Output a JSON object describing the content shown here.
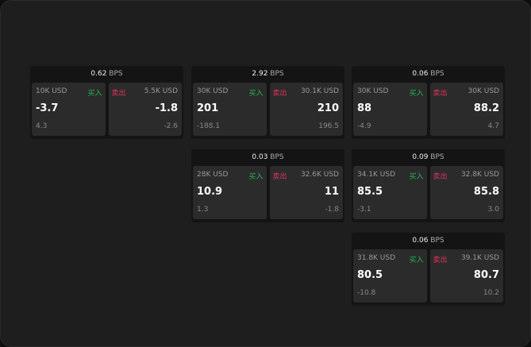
{
  "bps_unit": "BPS",
  "buy_label": "买入",
  "sell_label": "卖出",
  "colors": {
    "buy": "#27b35a",
    "sell": "#e0335f"
  },
  "cards": [
    {
      "bps": "0.62",
      "bid": {
        "qty": "10K USD",
        "price": "-3.7",
        "change": "4.3"
      },
      "ask": {
        "qty": "5.5K USD",
        "price": "-1.8",
        "change": "-2.6"
      }
    },
    {
      "bps": "2.92",
      "bid": {
        "qty": "30K USD",
        "price": "201",
        "change": "-188.1"
      },
      "ask": {
        "qty": "30.1K USD",
        "price": "210",
        "change": "196.5"
      }
    },
    {
      "bps": "0.06",
      "bid": {
        "qty": "30K USD",
        "price": "88",
        "change": "-4.9"
      },
      "ask": {
        "qty": "30K USD",
        "price": "88.2",
        "change": "4.7"
      }
    },
    {
      "bps": "0.03",
      "bid": {
        "qty": "28K USD",
        "price": "10.9",
        "change": "1.3"
      },
      "ask": {
        "qty": "32.6K USD",
        "price": "11",
        "change": "-1.8"
      }
    },
    {
      "bps": "0.09",
      "bid": {
        "qty": "34.1K USD",
        "price": "85.5",
        "change": "-3.1"
      },
      "ask": {
        "qty": "32.8K USD",
        "price": "85.8",
        "change": "3.0"
      }
    },
    {
      "bps": "0.06",
      "bid": {
        "qty": "31.8K USD",
        "price": "80.5",
        "change": "-10.8"
      },
      "ask": {
        "qty": "39.1K USD",
        "price": "80.7",
        "change": "10.2"
      }
    }
  ]
}
